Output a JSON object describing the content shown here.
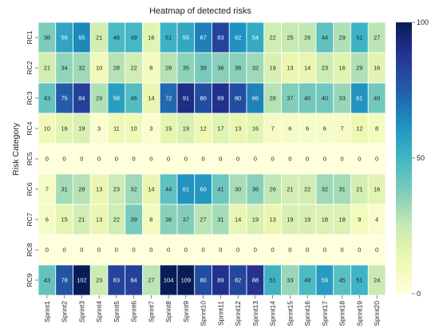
{
  "chart_data": {
    "type": "heatmap",
    "title": "Heatmap of detected risks",
    "xlabel": "",
    "ylabel": "Risk Category",
    "x_categories": [
      "Sprint1",
      "Sprint2",
      "Sprint3",
      "Sprint4",
      "Sprint5",
      "Sprint6",
      "Sprint7",
      "Sprint8",
      "Sprint9",
      "Sprint10",
      "Sprint11",
      "Sprint12",
      "Sprint13",
      "Sprint14",
      "Sprint15",
      "Sprint16",
      "Sprint17",
      "Sprint18",
      "Sprint19",
      "Sprint20"
    ],
    "y_categories": [
      "RC1",
      "RC2",
      "RC3",
      "RC4",
      "RC5",
      "RC6",
      "RC7",
      "RC8",
      "RC9"
    ],
    "values": [
      [
        38,
        56,
        65,
        21,
        48,
        49,
        16,
        51,
        55,
        67,
        83,
        62,
        54,
        22,
        25,
        26,
        44,
        29,
        51,
        27
      ],
      [
        21,
        34,
        32,
        10,
        28,
        22,
        8,
        28,
        35,
        39,
        36,
        36,
        32,
        19,
        13,
        14,
        23,
        16,
        29,
        16
      ],
      [
        43,
        75,
        84,
        29,
        58,
        46,
        14,
        72,
        91,
        80,
        89,
        80,
        66,
        28,
        37,
        40,
        40,
        33,
        61,
        40
      ],
      [
        10,
        16,
        19,
        3,
        11,
        10,
        3,
        15,
        19,
        12,
        17,
        13,
        16,
        7,
        6,
        6,
        6,
        7,
        12,
        8
      ],
      [
        0,
        0,
        0,
        0,
        0,
        0,
        0,
        0,
        0,
        0,
        0,
        0,
        0,
        0,
        0,
        0,
        0,
        0,
        0,
        0
      ],
      [
        7,
        31,
        28,
        13,
        23,
        32,
        14,
        44,
        61,
        60,
        41,
        30,
        36,
        26,
        21,
        22,
        32,
        31,
        21,
        16
      ],
      [
        6,
        15,
        21,
        13,
        22,
        39,
        8,
        36,
        37,
        27,
        31,
        14,
        19,
        13,
        19,
        19,
        18,
        18,
        9,
        4
      ],
      [
        0,
        0,
        0,
        0,
        0,
        0,
        0,
        0,
        0,
        0,
        0,
        0,
        0,
        0,
        0,
        0,
        0,
        0,
        0,
        0
      ],
      [
        43,
        78,
        102,
        23,
        83,
        84,
        27,
        104,
        109,
        80,
        89,
        82,
        88,
        51,
        33,
        48,
        59,
        45,
        51,
        24
      ]
    ],
    "colorbar": {
      "min": 0,
      "max": 100,
      "ticks": [
        0,
        50,
        100
      ]
    },
    "colormap": "YlGnBu",
    "grid": true
  }
}
